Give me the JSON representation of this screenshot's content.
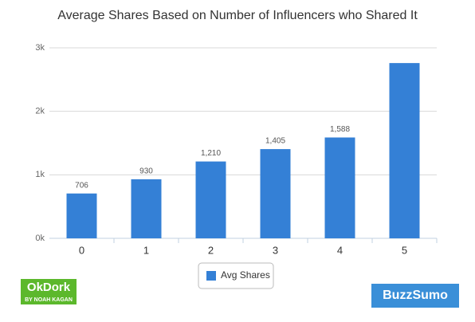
{
  "chart_data": {
    "type": "bar",
    "title": "Average Shares Based on Number of Influencers who Shared It",
    "categories": [
      "0",
      "1",
      "2",
      "3",
      "4",
      "5"
    ],
    "series": [
      {
        "name": "Avg Shares",
        "color": "#3480d6",
        "values": [
          706,
          930,
          1210,
          1405,
          1588,
          2760
        ]
      }
    ],
    "value_labels": [
      "706",
      "930",
      "1,210",
      "1,405",
      "1,588",
      null
    ],
    "ylim": [
      0,
      3000
    ],
    "yticks": [
      {
        "value": 0,
        "label": "0k"
      },
      {
        "value": 1000,
        "label": "1k"
      },
      {
        "value": 2000,
        "label": "2k"
      },
      {
        "value": 3000,
        "label": "3k"
      }
    ],
    "grid": true,
    "legend": "bottom"
  },
  "branding": {
    "left_logo": "OkDork",
    "left_logo_sub": "BY NOAH KAGAN",
    "right_logo": "BuzzSumo"
  }
}
